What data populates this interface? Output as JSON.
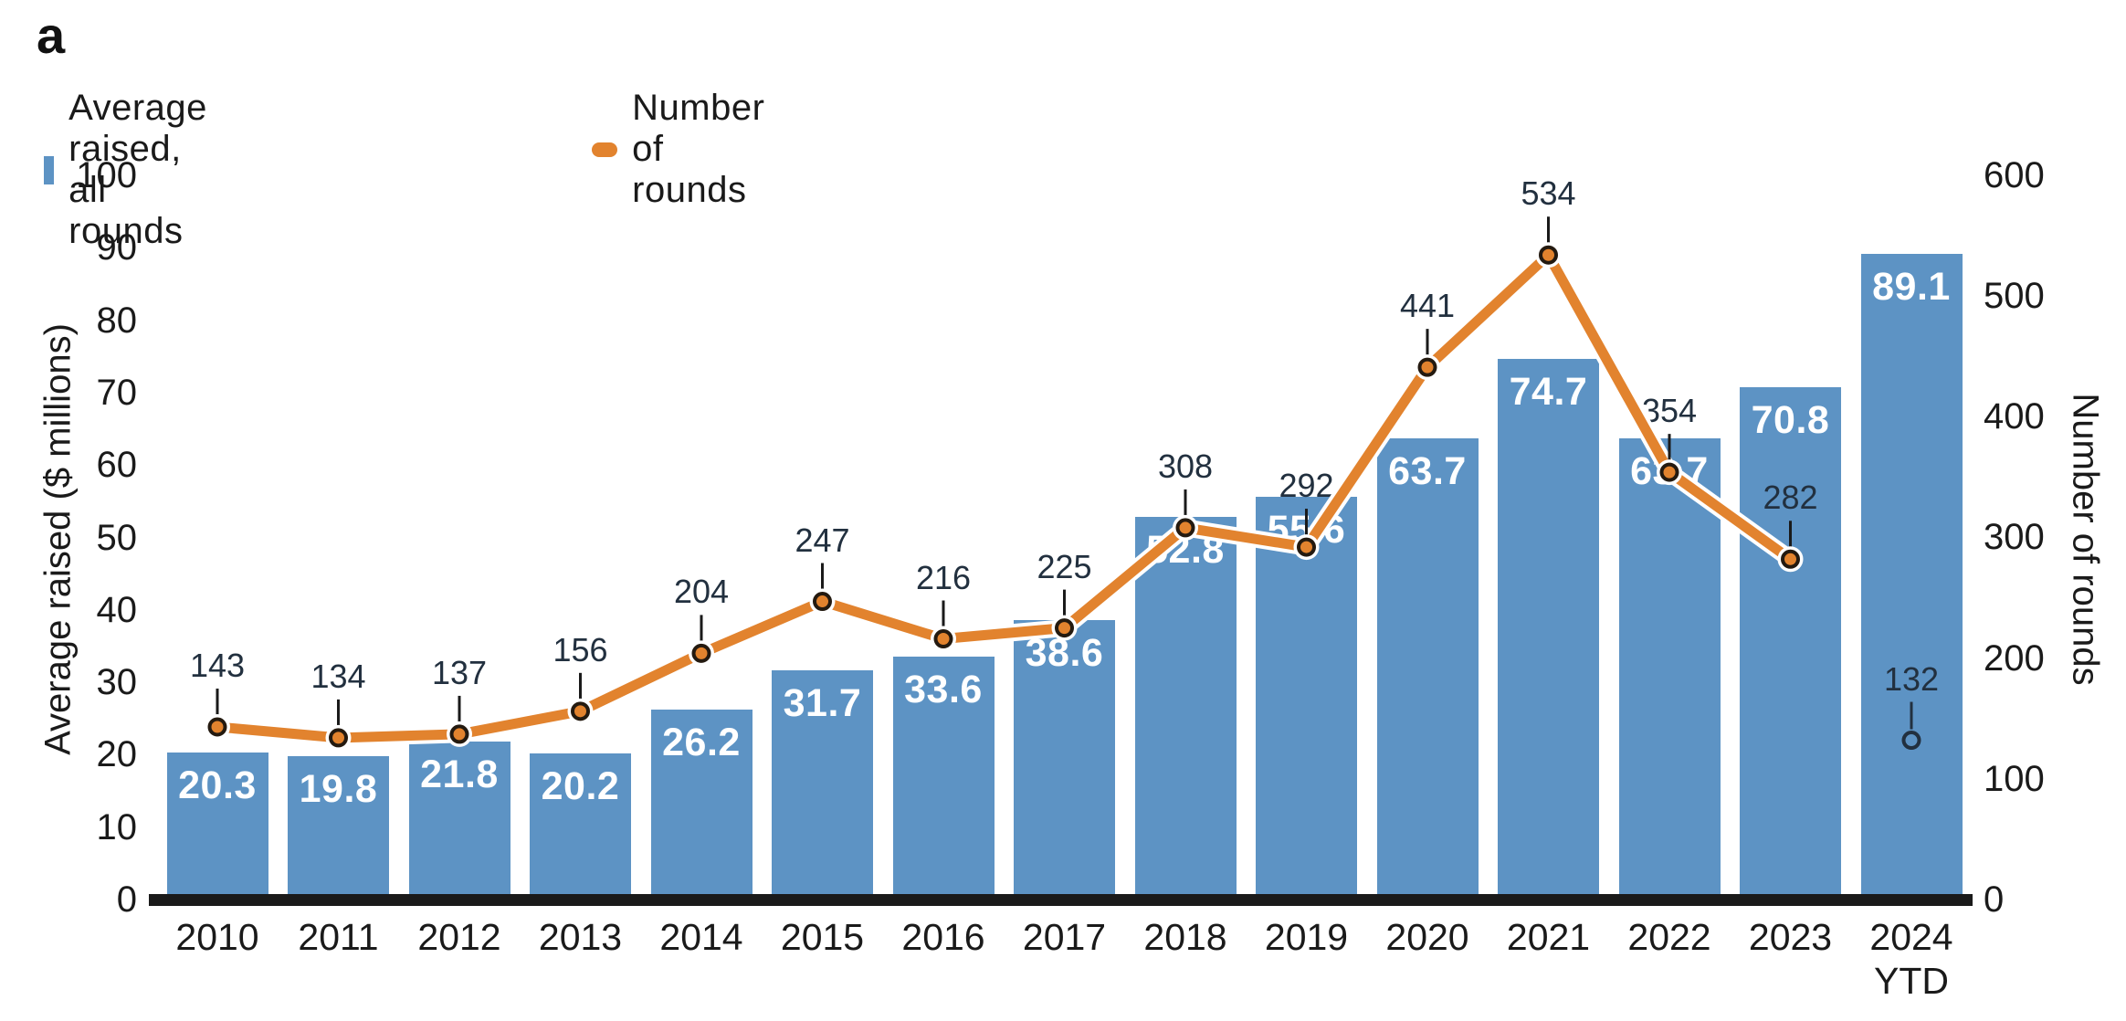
{
  "panel_label": "a",
  "legend": {
    "bar_label": "Average raised, all rounds",
    "line_label": "Number of rounds"
  },
  "colors": {
    "bar": "#5d93c4",
    "line": "#e2832e",
    "line_casing": "#ffffff",
    "marker_fill": "#e2832e",
    "marker_stroke": "#241a10",
    "isolated_marker_stroke": "#22303f",
    "axis": "#1a1a1a",
    "bar_value_text": "#ffffff",
    "point_label_text": "#22303f"
  },
  "chart_data": {
    "type": "bar+line",
    "categories": [
      "2010",
      "2011",
      "2012",
      "2013",
      "2014",
      "2015",
      "2016",
      "2017",
      "2018",
      "2019",
      "2020",
      "2021",
      "2022",
      "2023",
      "2024\nYTD"
    ],
    "series": [
      {
        "name": "Average raised, all rounds",
        "type": "bar",
        "axis": "left",
        "values": [
          20.3,
          19.8,
          21.8,
          20.2,
          26.2,
          31.7,
          33.6,
          38.6,
          52.8,
          55.6,
          63.7,
          74.7,
          63.7,
          70.8,
          89.1
        ]
      },
      {
        "name": "Number of rounds",
        "type": "line",
        "axis": "right",
        "values": [
          143,
          134,
          137,
          156,
          204,
          247,
          216,
          225,
          308,
          292,
          441,
          534,
          354,
          282,
          132
        ],
        "last_point_disconnected": true
      }
    ],
    "left_axis": {
      "label": "Average raised ($ millions)",
      "min": 0,
      "max": 100,
      "step": 10
    },
    "right_axis": {
      "label": "Number of rounds",
      "min": 0,
      "max": 600,
      "step": 100
    },
    "grid": false,
    "legend_position": "top-left"
  }
}
